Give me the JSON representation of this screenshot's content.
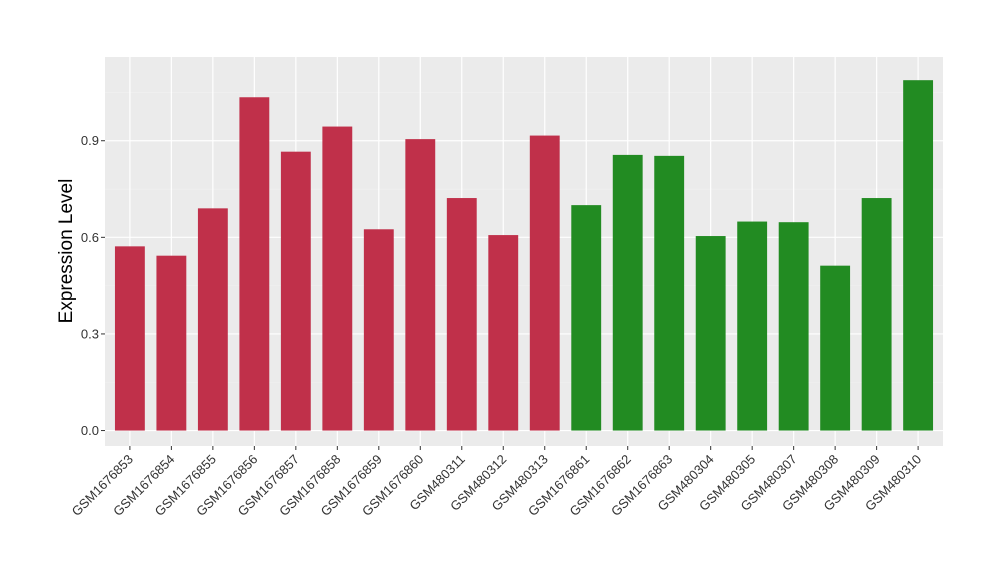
{
  "chart_data": {
    "type": "bar",
    "title": "",
    "xlabel": "",
    "ylabel": "Expression Level",
    "ylim": [
      -0.048,
      1.16
    ],
    "yticks": [
      0.0,
      0.3,
      0.6,
      0.9
    ],
    "ytick_labels": [
      "0.0",
      "0.3",
      "0.6",
      "0.9"
    ],
    "grid": true,
    "legend": "none",
    "colors": {
      "group1": "#c0304a",
      "group2": "#228b22",
      "panel": "#ebebeb",
      "grid_major": "#ffffff",
      "grid_minor": "#f2f2f2"
    },
    "categories": [
      "GSM1676853",
      "GSM1676854",
      "GSM1676855",
      "GSM1676856",
      "GSM1676857",
      "GSM1676858",
      "GSM1676859",
      "GSM1676860",
      "GSM480311",
      "GSM480312",
      "GSM480313",
      "GSM1676861",
      "GSM1676862",
      "GSM1676863",
      "GSM480304",
      "GSM480305",
      "GSM480307",
      "GSM480308",
      "GSM480309",
      "GSM480310"
    ],
    "values": [
      0.572,
      0.543,
      0.69,
      1.035,
      0.866,
      0.944,
      0.625,
      0.905,
      0.722,
      0.607,
      0.916,
      0.7,
      0.856,
      0.853,
      0.604,
      0.649,
      0.647,
      0.512,
      0.722,
      1.088
    ],
    "groups": [
      1,
      1,
      1,
      1,
      1,
      1,
      1,
      1,
      1,
      1,
      1,
      2,
      2,
      2,
      2,
      2,
      2,
      2,
      2,
      2
    ]
  }
}
